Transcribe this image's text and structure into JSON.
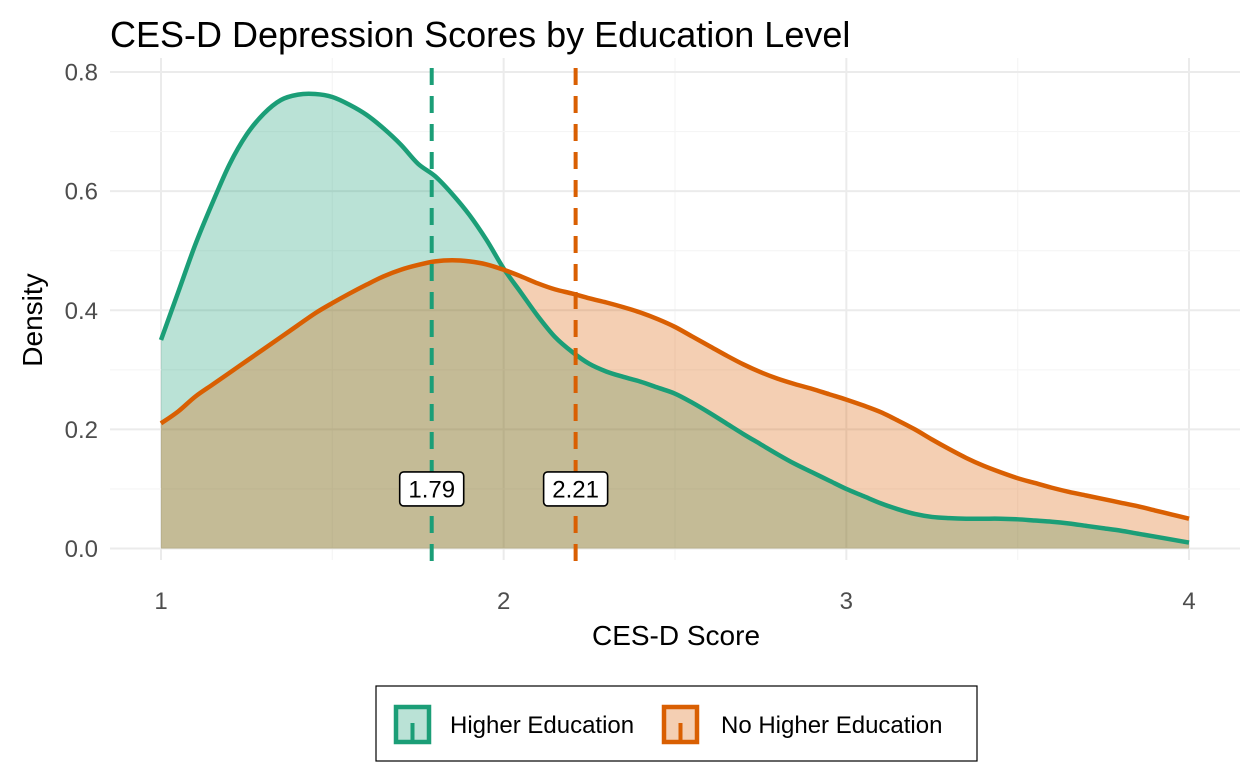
{
  "chart_data": {
    "type": "area",
    "title": "CES-D Depression Scores by Education Level",
    "xlabel": "CES-D Score",
    "ylabel": "Density",
    "xlim": [
      1,
      4
    ],
    "ylim": [
      0,
      0.8
    ],
    "x_ticks": [
      "1",
      "2",
      "3",
      "4"
    ],
    "y_ticks": [
      "0.0",
      "0.2",
      "0.4",
      "0.6",
      "0.8"
    ],
    "grid": true,
    "legend_position": "bottom",
    "series": [
      {
        "name": "Higher Education",
        "color": "#1B9E77",
        "mean": 1.79,
        "mean_label": "1.79",
        "x": [
          1.0,
          1.05,
          1.1,
          1.15,
          1.2,
          1.25,
          1.3,
          1.35,
          1.4,
          1.45,
          1.5,
          1.55,
          1.6,
          1.65,
          1.7,
          1.75,
          1.8,
          1.85,
          1.9,
          1.95,
          2.0,
          2.05,
          2.1,
          2.15,
          2.2,
          2.25,
          2.3,
          2.35,
          2.4,
          2.45,
          2.5,
          2.55,
          2.6,
          2.65,
          2.7,
          2.75,
          2.8,
          2.85,
          2.9,
          2.95,
          3.0,
          3.05,
          3.1,
          3.15,
          3.2,
          3.25,
          3.3,
          3.35,
          3.4,
          3.45,
          3.5,
          3.55,
          3.6,
          3.65,
          3.7,
          3.75,
          3.8,
          3.85,
          3.9,
          3.95,
          4.0
        ],
        "y": [
          0.35,
          0.43,
          0.51,
          0.58,
          0.645,
          0.695,
          0.73,
          0.753,
          0.762,
          0.763,
          0.758,
          0.745,
          0.728,
          0.705,
          0.678,
          0.646,
          0.625,
          0.595,
          0.56,
          0.518,
          0.47,
          0.43,
          0.39,
          0.355,
          0.33,
          0.31,
          0.297,
          0.288,
          0.28,
          0.27,
          0.26,
          0.245,
          0.228,
          0.21,
          0.192,
          0.175,
          0.158,
          0.142,
          0.128,
          0.114,
          0.1,
          0.088,
          0.076,
          0.066,
          0.058,
          0.053,
          0.051,
          0.05,
          0.05,
          0.05,
          0.049,
          0.047,
          0.045,
          0.042,
          0.038,
          0.034,
          0.03,
          0.025,
          0.02,
          0.015,
          0.01
        ]
      },
      {
        "name": "No Higher Education",
        "color": "#D95F02",
        "mean": 2.21,
        "mean_label": "2.21",
        "x": [
          1.0,
          1.05,
          1.1,
          1.15,
          1.2,
          1.25,
          1.3,
          1.35,
          1.4,
          1.45,
          1.5,
          1.55,
          1.6,
          1.65,
          1.7,
          1.75,
          1.8,
          1.85,
          1.9,
          1.95,
          2.0,
          2.05,
          2.1,
          2.15,
          2.2,
          2.25,
          2.3,
          2.35,
          2.4,
          2.45,
          2.5,
          2.55,
          2.6,
          2.65,
          2.7,
          2.75,
          2.8,
          2.85,
          2.9,
          2.95,
          3.0,
          3.05,
          3.1,
          3.15,
          3.2,
          3.25,
          3.3,
          3.35,
          3.4,
          3.45,
          3.5,
          3.55,
          3.6,
          3.65,
          3.7,
          3.75,
          3.8,
          3.85,
          3.9,
          3.95,
          4.0
        ],
        "y": [
          0.21,
          0.23,
          0.255,
          0.275,
          0.295,
          0.315,
          0.335,
          0.355,
          0.375,
          0.395,
          0.412,
          0.428,
          0.443,
          0.457,
          0.468,
          0.476,
          0.482,
          0.484,
          0.482,
          0.477,
          0.468,
          0.457,
          0.445,
          0.435,
          0.428,
          0.42,
          0.413,
          0.405,
          0.396,
          0.385,
          0.372,
          0.356,
          0.34,
          0.324,
          0.309,
          0.296,
          0.285,
          0.276,
          0.268,
          0.259,
          0.25,
          0.24,
          0.229,
          0.215,
          0.2,
          0.183,
          0.167,
          0.152,
          0.139,
          0.128,
          0.118,
          0.11,
          0.102,
          0.095,
          0.089,
          0.083,
          0.077,
          0.071,
          0.064,
          0.057,
          0.05
        ]
      }
    ]
  }
}
